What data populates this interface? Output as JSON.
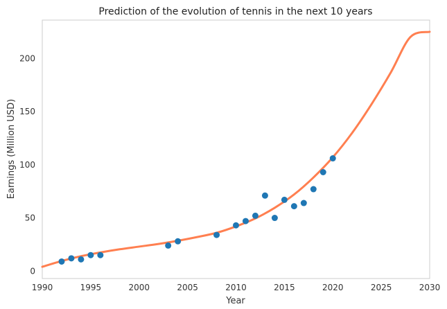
{
  "chart_data": {
    "type": "scatter",
    "title": "Prediction of the evolution of tennis in the next 10 years",
    "xlabel": "Year",
    "ylabel": "Earnings (Million USD)",
    "xlim": [
      1990,
      2030
    ],
    "ylim": [
      -7,
      236
    ],
    "xticks": [
      1990,
      1995,
      2000,
      2005,
      2010,
      2015,
      2020,
      2025,
      2030
    ],
    "yticks": [
      0,
      50,
      100,
      150,
      200
    ],
    "grid": false,
    "legend": "none",
    "series": [
      {
        "kind": "scatter",
        "color": "#1f77b4",
        "x": [
          1992,
          1993,
          1994,
          1995,
          1996,
          2003,
          2004,
          2008,
          2010,
          2011,
          2012,
          2013,
          2014,
          2015,
          2016,
          2017,
          2018,
          2019,
          2020
        ],
        "y": [
          9,
          12,
          11,
          15,
          15,
          24,
          28,
          34,
          43,
          47,
          52,
          71,
          50,
          67,
          61,
          64,
          77,
          93,
          106
        ]
      },
      {
        "kind": "line",
        "color": "#ff7f50",
        "x": [
          1990,
          1992,
          1994,
          1996,
          1998,
          2000,
          2002,
          2004,
          2006,
          2008,
          2010,
          2012,
          2014,
          2016,
          2018,
          2020,
          2022,
          2024,
          2026,
          2028,
          2030
        ],
        "y": [
          4,
          9.5,
          14,
          17.5,
          20.5,
          23,
          25.5,
          28.5,
          32,
          36,
          42,
          49.5,
          59.5,
          72,
          88,
          107,
          130,
          157,
          187,
          220,
          225
        ]
      }
    ]
  }
}
